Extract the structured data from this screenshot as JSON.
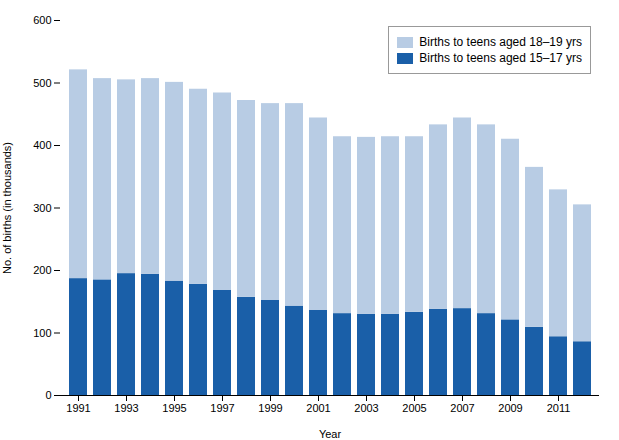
{
  "chart_data": {
    "type": "bar",
    "stacked": true,
    "categories": [
      "1991",
      null,
      "1993",
      null,
      "1995",
      null,
      "1997",
      null,
      "1999",
      null,
      "2001",
      null,
      "2003",
      null,
      "2005",
      null,
      "2007",
      null,
      "2009",
      null,
      "2011",
      null
    ],
    "series": [
      {
        "name": "Births to teens aged 15–17 yrs",
        "color": "#1a5fa8",
        "values": [
          187,
          185,
          195,
          194,
          183,
          178,
          168,
          157,
          152,
          143,
          136,
          131,
          130,
          130,
          133,
          138,
          139,
          131,
          121,
          109,
          94,
          86
        ]
      },
      {
        "name": "Births to teens aged 18–19 yrs",
        "color": "#b8cce4",
        "values": [
          334,
          322,
          310,
          313,
          318,
          312,
          316,
          315,
          315,
          324,
          308,
          283,
          283,
          284,
          281,
          295,
          305,
          302,
          289,
          256,
          235,
          219
        ]
      }
    ],
    "xlabel": "Year",
    "ylabel": "No. of births (in thousands)",
    "ylim": [
      0,
      600
    ],
    "yticks": [
      0,
      100,
      200,
      300,
      400,
      500,
      600
    ],
    "grid": false,
    "legend": "upper right"
  }
}
